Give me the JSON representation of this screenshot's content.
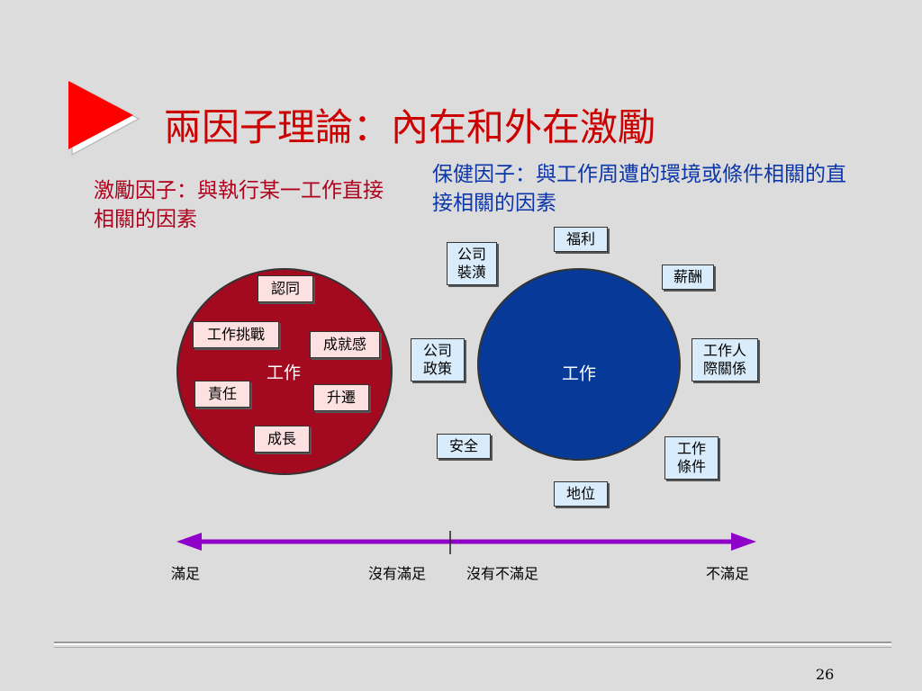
{
  "title": "兩因子理論：內在和外在激勵",
  "motivators": {
    "caption": "激勵因子：與執行某一工作直接相關的因素",
    "center_label": "工作",
    "factors": [
      "認同",
      "工作挑戰",
      "成就感",
      "責任",
      "升遷",
      "成長"
    ]
  },
  "hygiene": {
    "caption": "保健因子：與工作周遭的環境或條件相關的直接相關的因素",
    "center_label": "工作",
    "factors": [
      "福利",
      "公司\n裝潢",
      "薪酬",
      "公司\n政策",
      "工作人\n際關係",
      "安全",
      "工作\n條件",
      "地位"
    ]
  },
  "scale": {
    "left_end": "滿足",
    "left_mid": "沒有滿足",
    "right_mid": "沒有不滿足",
    "right_end": "不滿足"
  },
  "colors": {
    "motivator_circle": "#a30a1f",
    "hygiene_circle": "#073a98",
    "arrow": "#8f00c8",
    "title": "#cc0000"
  },
  "page_number": "26"
}
